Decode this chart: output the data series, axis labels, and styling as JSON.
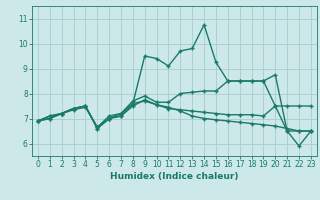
{
  "xlabel": "Humidex (Indice chaleur)",
  "xlim": [
    -0.5,
    23.5
  ],
  "ylim": [
    5.5,
    11.5
  ],
  "yticks": [
    6,
    7,
    8,
    9,
    10,
    11
  ],
  "xticks": [
    0,
    1,
    2,
    3,
    4,
    5,
    6,
    7,
    8,
    9,
    10,
    11,
    12,
    13,
    14,
    15,
    16,
    17,
    18,
    19,
    20,
    21,
    22,
    23
  ],
  "bg_color": "#cce8e8",
  "grid_color": "#aacccc",
  "line_color": "#1a7a6a",
  "series": [
    [
      6.9,
      7.1,
      7.2,
      7.4,
      7.5,
      6.6,
      7.0,
      7.1,
      7.6,
      9.5,
      9.4,
      9.1,
      9.7,
      9.8,
      10.75,
      9.25,
      8.5,
      8.5,
      8.5,
      8.5,
      7.5,
      6.5,
      5.9,
      6.5
    ],
    [
      6.9,
      7.1,
      7.2,
      7.4,
      7.5,
      6.6,
      7.0,
      7.2,
      7.7,
      7.9,
      7.65,
      7.65,
      8.0,
      8.05,
      8.1,
      8.1,
      8.5,
      8.5,
      8.5,
      8.5,
      8.75,
      6.5,
      6.5,
      6.5
    ],
    [
      6.9,
      7.0,
      7.2,
      7.35,
      7.45,
      6.65,
      7.0,
      7.1,
      7.5,
      7.75,
      7.55,
      7.45,
      7.3,
      7.1,
      7.0,
      6.95,
      6.9,
      6.85,
      6.8,
      6.75,
      6.7,
      6.6,
      6.5,
      6.5
    ],
    [
      6.9,
      7.0,
      7.2,
      7.4,
      7.5,
      6.65,
      7.1,
      7.2,
      7.6,
      7.7,
      7.55,
      7.4,
      7.35,
      7.3,
      7.25,
      7.2,
      7.15,
      7.15,
      7.15,
      7.1,
      7.5,
      7.5,
      7.5,
      7.5
    ]
  ],
  "marker": "+",
  "markersize": 3,
  "linewidth": 1.0,
  "tick_fontsize": 5.5,
  "xlabel_fontsize": 6.5
}
